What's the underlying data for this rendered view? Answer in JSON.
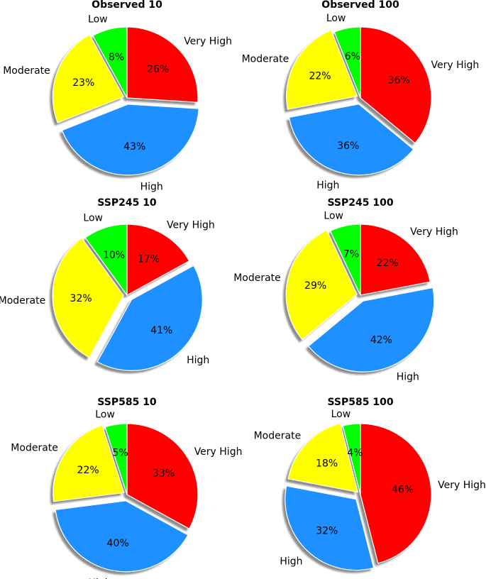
{
  "colors": {
    "Low": "#00ff00",
    "Moderate": "#ffff00",
    "High": "#1e90ff",
    "Very High": "#ff0000"
  },
  "chart_data": [
    {
      "type": "pie",
      "title": "Observed 10",
      "categories": [
        "Very High",
        "High",
        "Moderate",
        "Low"
      ],
      "values": [
        26,
        43,
        23,
        8
      ],
      "value_labels": [
        "26%",
        "43%",
        "23%",
        "8%"
      ],
      "labels": {
        "very_high": "Very High",
        "high": "High",
        "moderate": "Moderate",
        "low": "Low"
      }
    },
    {
      "type": "pie",
      "title": "Observed 100",
      "categories": [
        "Very High",
        "High",
        "Moderate",
        "Low"
      ],
      "values": [
        36,
        36,
        22,
        6
      ],
      "value_labels": [
        "36%",
        "36%",
        "22%",
        "6%"
      ],
      "labels": {
        "very_high": "Very High",
        "high": "High",
        "moderate": "Moderate",
        "low": "Low"
      }
    },
    {
      "type": "pie",
      "title": "SSP245 10",
      "categories": [
        "Very High",
        "High",
        "Moderate",
        "Low"
      ],
      "values": [
        17,
        41,
        32,
        10
      ],
      "value_labels": [
        "17%",
        "41%",
        "32%",
        "10%"
      ],
      "labels": {
        "very_high": "Very High",
        "high": "High",
        "moderate": "Moderate",
        "low": "Low"
      }
    },
    {
      "type": "pie",
      "title": "SSP245 100",
      "categories": [
        "Very High",
        "High",
        "Moderate",
        "Low"
      ],
      "values": [
        22,
        42,
        29,
        7
      ],
      "value_labels": [
        "22%",
        "42%",
        "29%",
        "7%"
      ],
      "labels": {
        "very_high": "Very High",
        "high": "High",
        "moderate": "Moderate",
        "low": "Low"
      }
    },
    {
      "type": "pie",
      "title": "SSP585 10",
      "categories": [
        "Very High",
        "High",
        "Moderate",
        "Low"
      ],
      "values": [
        33,
        40,
        22,
        5
      ],
      "value_labels": [
        "33%",
        "40%",
        "22%",
        "5%"
      ],
      "labels": {
        "very_high": "Very High",
        "high": "High",
        "moderate": "Moderate",
        "low": "Low"
      }
    },
    {
      "type": "pie",
      "title": "SSP585 100",
      "categories": [
        "Very High",
        "High",
        "Moderate",
        "Low"
      ],
      "values": [
        46,
        32,
        18,
        4
      ],
      "value_labels": [
        "46%",
        "32%",
        "18%",
        "4%"
      ],
      "labels": {
        "very_high": "Very High",
        "high": "High",
        "moderate": "Moderate",
        "low": "Low"
      }
    }
  ]
}
